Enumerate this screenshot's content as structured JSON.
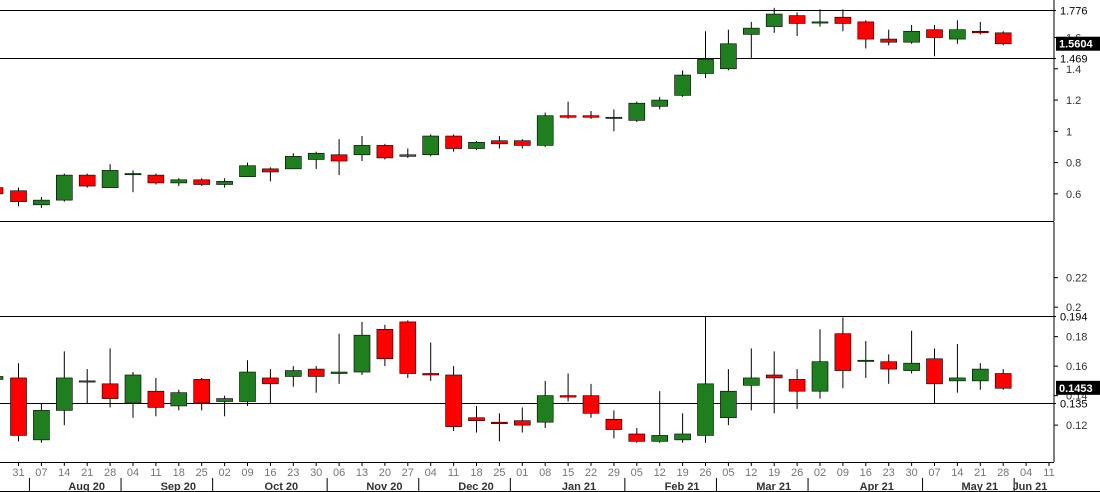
{
  "chart_data": [
    {
      "type": "candlestick",
      "interval": "weekly",
      "period_labels": [
        "31",
        "07",
        "14",
        "21",
        "28",
        "04",
        "11",
        "18",
        "25",
        "02",
        "09",
        "16",
        "23",
        "30",
        "06",
        "13",
        "20",
        "27",
        "04",
        "11",
        "18",
        "25",
        "01",
        "08",
        "15",
        "22",
        "29",
        "05",
        "12",
        "19",
        "26",
        "05",
        "12",
        "19",
        "26",
        "02",
        "09",
        "16",
        "23",
        "30",
        "07",
        "14",
        "21",
        "28"
      ],
      "ohlc": [
        [
          0.62,
          0.64,
          0.52,
          0.55
        ],
        [
          0.53,
          0.58,
          0.51,
          0.56
        ],
        [
          0.56,
          0.73,
          0.55,
          0.72
        ],
        [
          0.72,
          0.73,
          0.64,
          0.65
        ],
        [
          0.64,
          0.79,
          0.64,
          0.75
        ],
        [
          0.73,
          0.75,
          0.61,
          0.73
        ],
        [
          0.72,
          0.73,
          0.66,
          0.67
        ],
        [
          0.67,
          0.7,
          0.65,
          0.69
        ],
        [
          0.69,
          0.7,
          0.65,
          0.66
        ],
        [
          0.66,
          0.7,
          0.64,
          0.68
        ],
        [
          0.71,
          0.8,
          0.71,
          0.78
        ],
        [
          0.76,
          0.77,
          0.68,
          0.74
        ],
        [
          0.76,
          0.86,
          0.76,
          0.84
        ],
        [
          0.82,
          0.87,
          0.76,
          0.86
        ],
        [
          0.85,
          0.95,
          0.72,
          0.81
        ],
        [
          0.85,
          0.97,
          0.81,
          0.91
        ],
        [
          0.91,
          0.92,
          0.82,
          0.83
        ],
        [
          0.84,
          0.89,
          0.83,
          0.85
        ],
        [
          0.85,
          0.98,
          0.84,
          0.97
        ],
        [
          0.97,
          0.98,
          0.87,
          0.89
        ],
        [
          0.89,
          0.94,
          0.88,
          0.93
        ],
        [
          0.94,
          0.97,
          0.89,
          0.92
        ],
        [
          0.94,
          0.95,
          0.89,
          0.91
        ],
        [
          0.91,
          1.12,
          0.9,
          1.1
        ],
        [
          1.1,
          1.19,
          1.08,
          1.09
        ],
        [
          1.1,
          1.13,
          1.08,
          1.09
        ],
        [
          1.09,
          1.14,
          1.0,
          1.09
        ],
        [
          1.07,
          1.19,
          1.06,
          1.18
        ],
        [
          1.16,
          1.22,
          1.14,
          1.2
        ],
        [
          1.23,
          1.39,
          1.22,
          1.36
        ],
        [
          1.37,
          1.64,
          1.34,
          1.46
        ],
        [
          1.4,
          1.65,
          1.39,
          1.56
        ],
        [
          1.62,
          1.7,
          1.47,
          1.66
        ],
        [
          1.67,
          1.79,
          1.63,
          1.75
        ],
        [
          1.74,
          1.76,
          1.61,
          1.69
        ],
        [
          1.7,
          1.78,
          1.67,
          1.7
        ],
        [
          1.73,
          1.78,
          1.64,
          1.69
        ],
        [
          1.7,
          1.71,
          1.53,
          1.59
        ],
        [
          1.59,
          1.65,
          1.55,
          1.57
        ],
        [
          1.57,
          1.68,
          1.56,
          1.64
        ],
        [
          1.65,
          1.68,
          1.48,
          1.6
        ],
        [
          1.59,
          1.71,
          1.56,
          1.65
        ],
        [
          1.64,
          1.7,
          1.62,
          1.63
        ],
        [
          1.63,
          1.64,
          1.55,
          1.56
        ]
      ],
      "y_ticks": [
        "1.6",
        "1.4",
        "1.2",
        "1",
        "0.8",
        "0.6"
      ],
      "reference_lines": [
        "1.776",
        "1.469"
      ],
      "last_value": "1.5604",
      "colors": {
        "up": "#1f7f1f",
        "down": "#ff0000",
        "last_value_bg": "#000000"
      }
    },
    {
      "type": "candlestick",
      "interval": "weekly",
      "ohlc": [
        [
          0.152,
          0.162,
          0.109,
          0.113
        ],
        [
          0.11,
          0.135,
          0.108,
          0.13
        ],
        [
          0.13,
          0.17,
          0.12,
          0.152
        ],
        [
          0.15,
          0.158,
          0.135,
          0.15
        ],
        [
          0.148,
          0.172,
          0.132,
          0.138
        ],
        [
          0.135,
          0.156,
          0.125,
          0.154
        ],
        [
          0.143,
          0.152,
          0.126,
          0.132
        ],
        [
          0.133,
          0.144,
          0.13,
          0.142
        ],
        [
          0.151,
          0.152,
          0.13,
          0.135
        ],
        [
          0.136,
          0.14,
          0.126,
          0.138
        ],
        [
          0.136,
          0.164,
          0.133,
          0.156
        ],
        [
          0.152,
          0.158,
          0.135,
          0.148
        ],
        [
          0.153,
          0.16,
          0.146,
          0.157
        ],
        [
          0.158,
          0.16,
          0.142,
          0.153
        ],
        [
          0.155,
          0.182,
          0.148,
          0.156
        ],
        [
          0.156,
          0.19,
          0.154,
          0.181
        ],
        [
          0.185,
          0.188,
          0.16,
          0.165
        ],
        [
          0.19,
          0.191,
          0.152,
          0.155
        ],
        [
          0.155,
          0.176,
          0.15,
          0.154
        ],
        [
          0.154,
          0.16,
          0.116,
          0.119
        ],
        [
          0.125,
          0.133,
          0.115,
          0.123
        ],
        [
          0.122,
          0.128,
          0.109,
          0.121
        ],
        [
          0.123,
          0.132,
          0.115,
          0.12
        ],
        [
          0.122,
          0.15,
          0.118,
          0.14
        ],
        [
          0.14,
          0.155,
          0.136,
          0.139
        ],
        [
          0.14,
          0.148,
          0.125,
          0.128
        ],
        [
          0.124,
          0.13,
          0.111,
          0.117
        ],
        [
          0.114,
          0.118,
          0.108,
          0.109
        ],
        [
          0.109,
          0.143,
          0.108,
          0.113
        ],
        [
          0.11,
          0.128,
          0.108,
          0.114
        ],
        [
          0.113,
          0.194,
          0.108,
          0.148
        ],
        [
          0.125,
          0.158,
          0.12,
          0.143
        ],
        [
          0.147,
          0.172,
          0.13,
          0.152
        ],
        [
          0.154,
          0.17,
          0.128,
          0.152
        ],
        [
          0.151,
          0.158,
          0.131,
          0.143
        ],
        [
          0.143,
          0.185,
          0.138,
          0.163
        ],
        [
          0.182,
          0.193,
          0.145,
          0.157
        ],
        [
          0.164,
          0.177,
          0.152,
          0.164
        ],
        [
          0.163,
          0.168,
          0.148,
          0.158
        ],
        [
          0.157,
          0.184,
          0.155,
          0.162
        ],
        [
          0.165,
          0.172,
          0.135,
          0.148
        ],
        [
          0.15,
          0.175,
          0.142,
          0.152
        ],
        [
          0.15,
          0.162,
          0.144,
          0.158
        ],
        [
          0.155,
          0.158,
          0.144,
          0.145
        ]
      ],
      "y_ticks": [
        "0.22",
        "0.2",
        "0.18",
        "0.16",
        "0.14",
        "0.12"
      ],
      "reference_lines": [
        "0.194",
        "0.135"
      ],
      "last_value": "0.1453",
      "colors": {
        "up": "#1f7f1f",
        "down": "#ff0000",
        "last_value_bg": "#000000"
      }
    }
  ],
  "x_axis": {
    "week_labels": [
      "31",
      "07",
      "14",
      "21",
      "28",
      "04",
      "11",
      "18",
      "25",
      "02",
      "09",
      "16",
      "23",
      "30",
      "06",
      "13",
      "20",
      "27",
      "04",
      "11",
      "18",
      "25",
      "01",
      "08",
      "15",
      "22",
      "29",
      "05",
      "12",
      "19",
      "26",
      "05",
      "12",
      "19",
      "26",
      "02",
      "09",
      "16",
      "23",
      "30",
      "07",
      "14",
      "21",
      "28",
      "04",
      "11"
    ],
    "month_labels": [
      "Aug 20",
      "Sep 20",
      "Oct 20",
      "Nov 20",
      "Dec 20",
      "Jan 21",
      "Feb 21",
      "Mar 21",
      "Apr 21",
      "May 21",
      "Jun 21"
    ],
    "month_start_index": [
      1,
      5,
      9,
      14,
      18,
      22,
      27,
      31,
      35,
      40,
      44
    ]
  }
}
